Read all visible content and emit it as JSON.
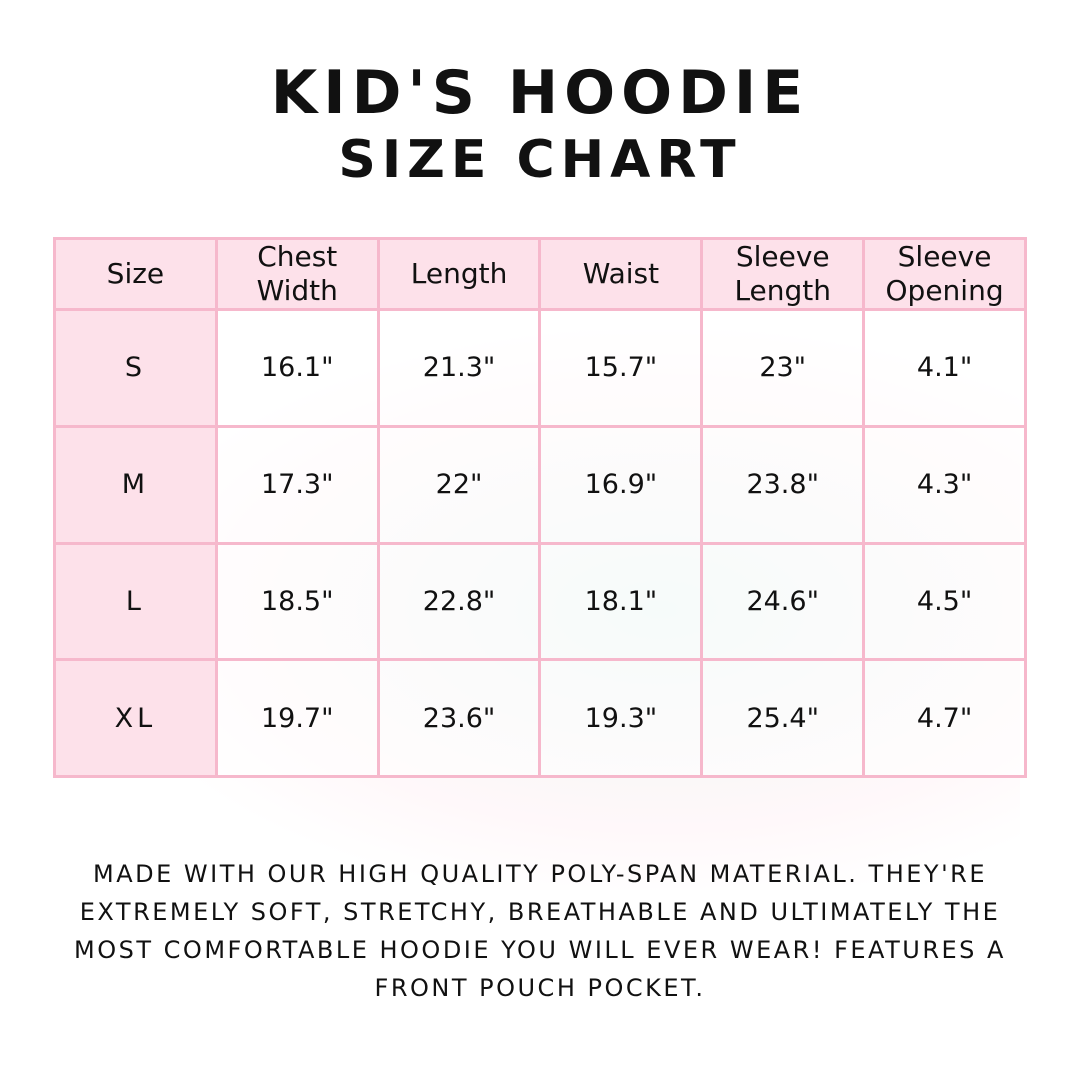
{
  "title": {
    "line1": "Kid's Hoodie",
    "line2": "Size Chart"
  },
  "table": {
    "headers": [
      "Size",
      "Chest Width",
      "Length",
      "Waist",
      "Sleeve Length",
      "Sleeve Opening"
    ],
    "rows": [
      [
        "S",
        "16.1\"",
        "21.3\"",
        "15.7\"",
        "23\"",
        "4.1\""
      ],
      [
        "M",
        "17.3\"",
        "22\"",
        "16.9\"",
        "23.8\"",
        "4.3\""
      ],
      [
        "L",
        "18.5\"",
        "22.8\"",
        "18.1\"",
        "24.6\"",
        "4.5\""
      ],
      [
        "XL",
        "19.7\"",
        "23.6\"",
        "19.3\"",
        "25.4\"",
        "4.7\""
      ]
    ]
  },
  "description": "Made with our high quality poly-span material. They're extremely soft, stretchy, breathable and ultimately the most comfortable hoodie you will ever wear! Features a front pouch pocket.",
  "colors": {
    "header_bg": "#fde1ea",
    "border": "#f6b8cc",
    "text": "#111111"
  }
}
